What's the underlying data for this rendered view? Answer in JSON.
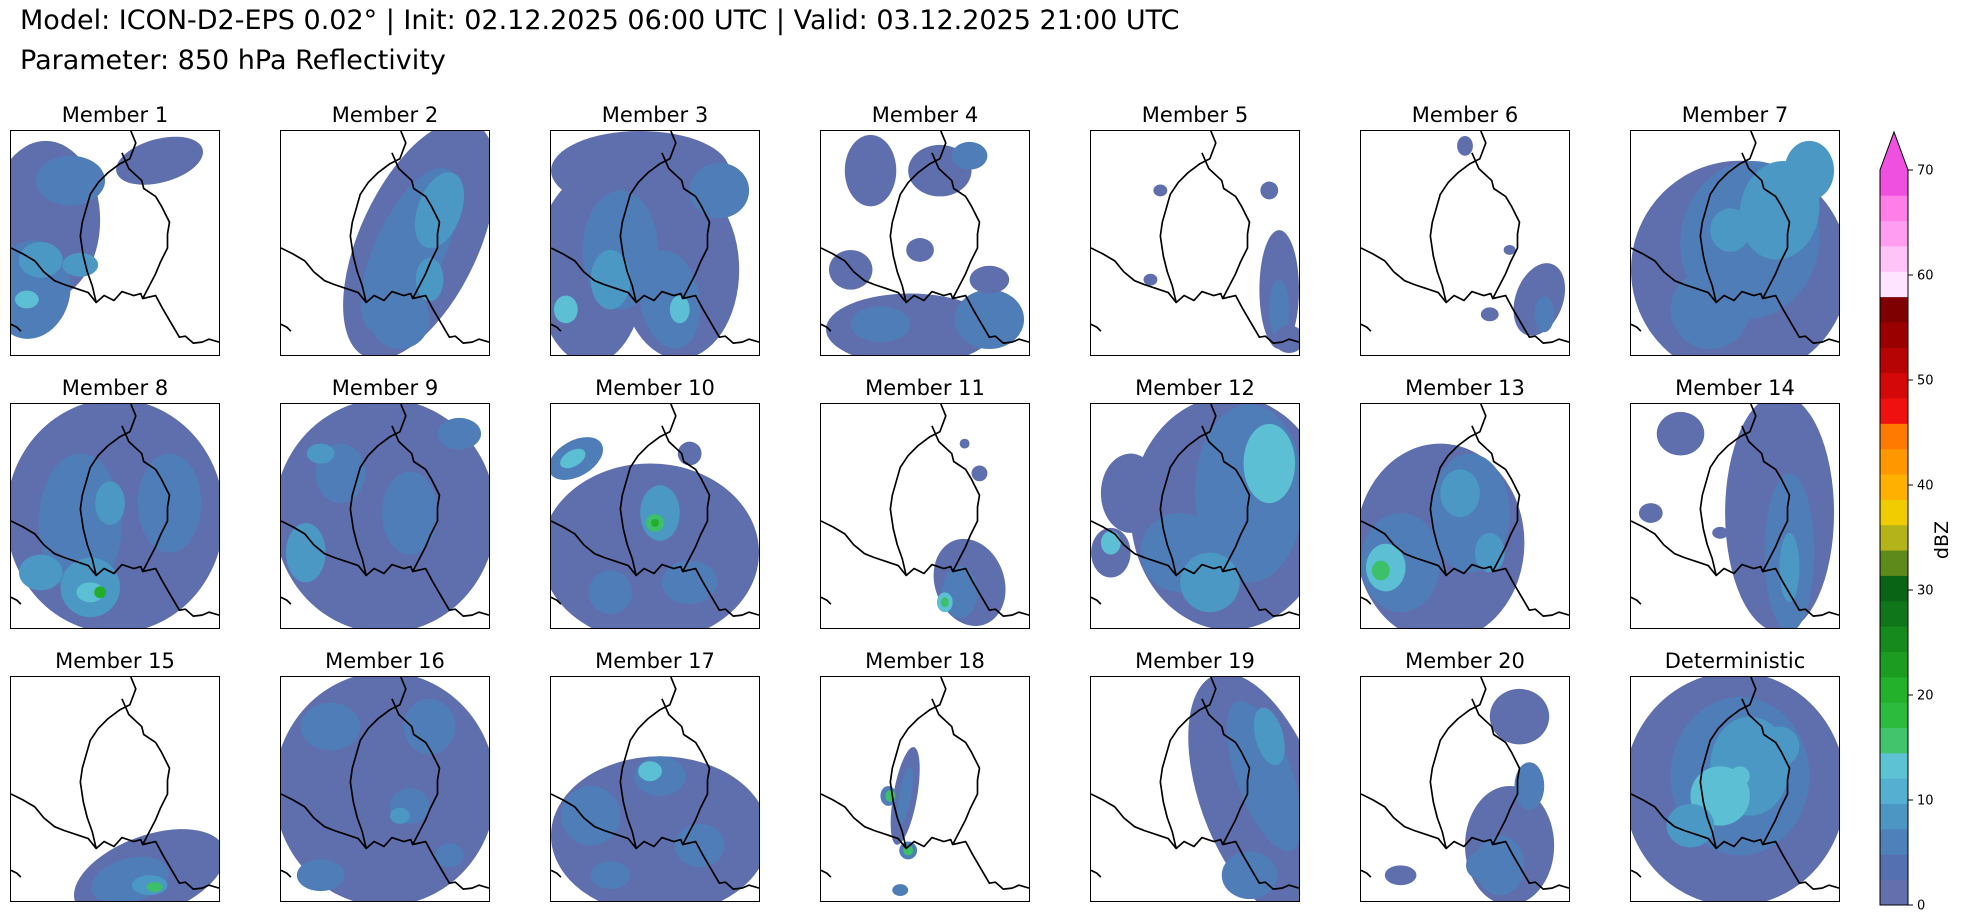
{
  "title": {
    "line1": "Model: ICON-D2-EPS 0.02° | Init: 02.12.2025 06:00 UTC | Valid: 03.12.2025 21:00 UTC",
    "line2": "Parameter: 850 hPa Reflectivity"
  },
  "panels": [
    {
      "label": "Member 1",
      "coverage": "west-heavy"
    },
    {
      "label": "Member 2",
      "coverage": "east-band"
    },
    {
      "label": "Member 3",
      "coverage": "wide-west"
    },
    {
      "label": "Member 4",
      "coverage": "south-scattered"
    },
    {
      "label": "Member 5",
      "coverage": "sparse-east"
    },
    {
      "label": "Member 6",
      "coverage": "sparse-southeast"
    },
    {
      "label": "Member 7",
      "coverage": "east-heavy"
    },
    {
      "label": "Member 8",
      "coverage": "wide"
    },
    {
      "label": "Member 9",
      "coverage": "wide-scattered"
    },
    {
      "label": "Member 10",
      "coverage": "center-south"
    },
    {
      "label": "Member 11",
      "coverage": "southeast-small"
    },
    {
      "label": "Member 12",
      "coverage": "wide-east"
    },
    {
      "label": "Member 13",
      "coverage": "west-center"
    },
    {
      "label": "Member 14",
      "coverage": "east-band-narrow"
    },
    {
      "label": "Member 15",
      "coverage": "south-corner"
    },
    {
      "label": "Member 16",
      "coverage": "wide-patchy"
    },
    {
      "label": "Member 17",
      "coverage": "south-wide"
    },
    {
      "label": "Member 18",
      "coverage": "narrow-line"
    },
    {
      "label": "Member 19",
      "coverage": "east-diagonal"
    },
    {
      "label": "Member 20",
      "coverage": "southeast-band"
    },
    {
      "label": "Deterministic",
      "coverage": "full"
    }
  ],
  "colorbar": {
    "label": "dBZ",
    "ticks": [
      "0",
      "10",
      "20",
      "30",
      "40",
      "50",
      "60",
      "70"
    ],
    "min": 0,
    "max": 70,
    "step": 2.5,
    "extend": "max",
    "colors": [
      "#6470ae",
      "#5470b0",
      "#4e80b9",
      "#4b96c3",
      "#55afd0",
      "#5cc2d4",
      "#41c46c",
      "#2cbb3d",
      "#23b02a",
      "#1c9d22",
      "#168a1c",
      "#10761a",
      "#0a6416",
      "#5e8a1c",
      "#b4b41a",
      "#f0cc00",
      "#ffb000",
      "#ff9800",
      "#ff7a00",
      "#ef1010",
      "#d40808",
      "#b60404",
      "#9a0000",
      "#7e0000",
      "#ffe4ff",
      "#ffc4f7",
      "#ff9ef0",
      "#ff7ee8",
      "#f050e0"
    ],
    "level_colors": {
      "lvl0": "#5f6fae",
      "lvl1": "#4f7db8",
      "lvl2": "#4c98c4",
      "lvl3": "#5cbfd3",
      "lvl4": "#3dc06a",
      "lvl5": "#24ad2b"
    }
  }
}
